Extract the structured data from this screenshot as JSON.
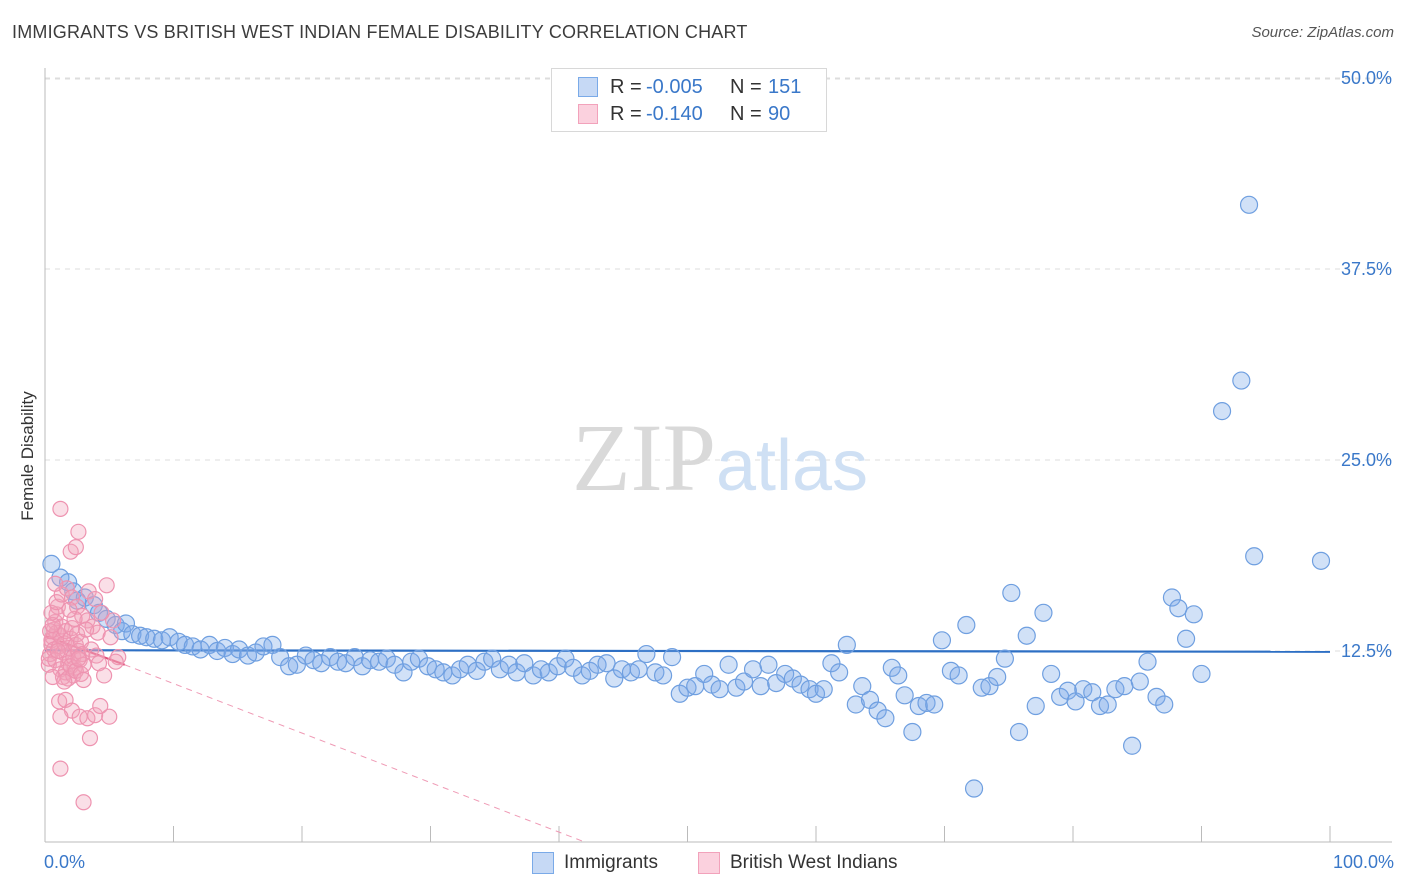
{
  "chart_data": {
    "type": "scatter",
    "title": "IMMIGRANTS VS BRITISH WEST INDIAN FEMALE DISABILITY CORRELATION CHART",
    "source": "Source: ZipAtlas.com",
    "watermark": "ZIPatlas",
    "xlabel": "",
    "ylabel": "Female Disability",
    "xlim": [
      0,
      100
    ],
    "ylim": [
      0,
      50
    ],
    "x_tick_labels": [
      "0.0%",
      "100.0%"
    ],
    "y_ticks": [
      12.5,
      25.0,
      37.5,
      50.0
    ],
    "y_tick_labels": [
      "12.5%",
      "25.0%",
      "37.5%",
      "50.0%"
    ],
    "grid": true,
    "legend_position": "top-center",
    "series": [
      {
        "name": "Immigrants",
        "color": "#7aaae8",
        "line_color": "#2d6fc4",
        "R": "-0.005",
        "N": "151",
        "trend": {
          "x": [
            0,
            100
          ],
          "y": [
            12.55,
            12.45
          ]
        },
        "points": [
          [
            0.5,
            18.2
          ],
          [
            1.2,
            17.3
          ],
          [
            1.8,
            17.0
          ],
          [
            2.2,
            16.4
          ],
          [
            2.5,
            15.8
          ],
          [
            3.1,
            16.0
          ],
          [
            3.8,
            15.5
          ],
          [
            4.2,
            15.0
          ],
          [
            4.8,
            14.6
          ],
          [
            5.5,
            14.2
          ],
          [
            6,
            13.8
          ],
          [
            6.3,
            14.3
          ],
          [
            6.8,
            13.6
          ],
          [
            7.4,
            13.5
          ],
          [
            7.9,
            13.4
          ],
          [
            8.5,
            13.3
          ],
          [
            9.1,
            13.2
          ],
          [
            9.7,
            13.4
          ],
          [
            10.4,
            13.1
          ],
          [
            10.9,
            12.9
          ],
          [
            11.5,
            12.8
          ],
          [
            12.1,
            12.6
          ],
          [
            12.8,
            12.9
          ],
          [
            13.4,
            12.5
          ],
          [
            14,
            12.7
          ],
          [
            14.6,
            12.3
          ],
          [
            15.1,
            12.6
          ],
          [
            15.8,
            12.2
          ],
          [
            16.4,
            12.4
          ],
          [
            17,
            12.8
          ],
          [
            17.7,
            12.9
          ],
          [
            18.3,
            12.1
          ],
          [
            19,
            11.5
          ],
          [
            19.6,
            11.6
          ],
          [
            20.3,
            12.2
          ],
          [
            20.9,
            11.9
          ],
          [
            21.5,
            11.7
          ],
          [
            22.2,
            12.1
          ],
          [
            22.8,
            11.8
          ],
          [
            23.4,
            11.7
          ],
          [
            24.1,
            12.1
          ],
          [
            24.7,
            11.5
          ],
          [
            25.3,
            11.9
          ],
          [
            26,
            11.8
          ],
          [
            26.6,
            12.0
          ],
          [
            27.2,
            11.6
          ],
          [
            27.9,
            11.1
          ],
          [
            28.5,
            11.8
          ],
          [
            29.1,
            12.0
          ],
          [
            29.8,
            11.5
          ],
          [
            30.4,
            11.3
          ],
          [
            31,
            11.1
          ],
          [
            31.7,
            10.9
          ],
          [
            32.3,
            11.3
          ],
          [
            32.9,
            11.6
          ],
          [
            33.6,
            11.2
          ],
          [
            34.2,
            11.8
          ],
          [
            34.8,
            12.0
          ],
          [
            35.4,
            11.3
          ],
          [
            36.1,
            11.6
          ],
          [
            36.7,
            11.1
          ],
          [
            37.3,
            11.7
          ],
          [
            38,
            10.9
          ],
          [
            38.6,
            11.3
          ],
          [
            39.2,
            11.1
          ],
          [
            39.9,
            11.5
          ],
          [
            40.5,
            12.0
          ],
          [
            41.1,
            11.4
          ],
          [
            41.8,
            10.9
          ],
          [
            42.4,
            11.2
          ],
          [
            43,
            11.6
          ],
          [
            43.7,
            11.7
          ],
          [
            44.3,
            10.7
          ],
          [
            44.9,
            11.3
          ],
          [
            45.6,
            11.1
          ],
          [
            46.2,
            11.3
          ],
          [
            46.8,
            12.3
          ],
          [
            47.5,
            11.1
          ],
          [
            48.1,
            10.9
          ],
          [
            48.8,
            12.1
          ],
          [
            49.4,
            9.7
          ],
          [
            50,
            10.1
          ],
          [
            50.6,
            10.2
          ],
          [
            51.3,
            11.0
          ],
          [
            51.9,
            10.3
          ],
          [
            52.5,
            10.0
          ],
          [
            53.2,
            11.6
          ],
          [
            53.8,
            10.1
          ],
          [
            54.4,
            10.5
          ],
          [
            55.1,
            11.3
          ],
          [
            55.7,
            10.2
          ],
          [
            56.3,
            11.6
          ],
          [
            56.9,
            10.4
          ],
          [
            57.6,
            11.0
          ],
          [
            58.2,
            10.7
          ],
          [
            58.8,
            10.3
          ],
          [
            59.5,
            10.0
          ],
          [
            60,
            9.7
          ],
          [
            60.6,
            10.0
          ],
          [
            61.2,
            11.7
          ],
          [
            61.8,
            11.1
          ],
          [
            62.4,
            12.9
          ],
          [
            63.1,
            9.0
          ],
          [
            63.6,
            10.2
          ],
          [
            64.2,
            9.3
          ],
          [
            64.8,
            8.6
          ],
          [
            65.4,
            8.1
          ],
          [
            65.9,
            11.4
          ],
          [
            66.4,
            10.9
          ],
          [
            66.9,
            9.6
          ],
          [
            67.5,
            7.2
          ],
          [
            68,
            8.9
          ],
          [
            68.6,
            9.1
          ],
          [
            69.2,
            9.0
          ],
          [
            69.8,
            13.2
          ],
          [
            70.5,
            11.2
          ],
          [
            71.1,
            10.9
          ],
          [
            71.7,
            14.2
          ],
          [
            72.3,
            3.5
          ],
          [
            72.9,
            10.1
          ],
          [
            73.5,
            10.2
          ],
          [
            74.1,
            10.8
          ],
          [
            74.7,
            12.0
          ],
          [
            75.2,
            16.3
          ],
          [
            75.8,
            7.2
          ],
          [
            76.4,
            13.5
          ],
          [
            77.1,
            8.9
          ],
          [
            77.7,
            15.0
          ],
          [
            78.3,
            11.0
          ],
          [
            79,
            9.5
          ],
          [
            79.6,
            9.9
          ],
          [
            80.2,
            9.2
          ],
          [
            80.8,
            10.0
          ],
          [
            81.5,
            9.8
          ],
          [
            82.1,
            8.9
          ],
          [
            82.7,
            9.0
          ],
          [
            83.3,
            10.0
          ],
          [
            84,
            10.2
          ],
          [
            84.6,
            6.3
          ],
          [
            85.2,
            10.5
          ],
          [
            85.8,
            11.8
          ],
          [
            86.5,
            9.5
          ],
          [
            87.1,
            9.0
          ],
          [
            87.7,
            16.0
          ],
          [
            88.2,
            15.3
          ],
          [
            88.8,
            13.3
          ],
          [
            89.4,
            14.9
          ],
          [
            90,
            11.0
          ],
          [
            91.6,
            28.2
          ],
          [
            93.1,
            30.2
          ],
          [
            93.7,
            41.7
          ],
          [
            94.1,
            18.7
          ],
          [
            99.3,
            18.4
          ]
        ]
      },
      {
        "name": "British West Indians",
        "color": "#f2a2bb",
        "line_color": "#e0507a",
        "R": "-0.140",
        "N": "90",
        "trend": {
          "x": [
            0,
            6.2
          ],
          "y": [
            13.5,
            11.6
          ]
        },
        "points": [
          [
            0.3,
            11.6
          ],
          [
            0.4,
            12.3
          ],
          [
            0.5,
            12.9
          ],
          [
            0.6,
            13.4
          ],
          [
            0.7,
            13.9
          ],
          [
            0.8,
            14.4
          ],
          [
            0.9,
            14.9
          ],
          [
            1,
            15.4
          ],
          [
            0.3,
            12.0
          ],
          [
            0.5,
            13.2
          ],
          [
            0.7,
            12.6
          ],
          [
            0.9,
            13.7
          ],
          [
            1.1,
            12.8
          ],
          [
            1.2,
            13.5
          ],
          [
            1.3,
            14.1
          ],
          [
            1.4,
            12.4
          ],
          [
            1.5,
            13.0
          ],
          [
            1.6,
            13.8
          ],
          [
            1.7,
            12.2
          ],
          [
            1.8,
            11.7
          ],
          [
            1.9,
            12.7
          ],
          [
            2,
            13.3
          ],
          [
            2.1,
            14.0
          ],
          [
            2.2,
            12.1
          ],
          [
            2.3,
            11.4
          ],
          [
            2.4,
            12.9
          ],
          [
            2.5,
            13.6
          ],
          [
            2.6,
            12.5
          ],
          [
            2.7,
            11.9
          ],
          [
            2.8,
            13.1
          ],
          [
            2.9,
            12.3
          ],
          [
            3,
            11.6
          ],
          [
            0.4,
            13.8
          ],
          [
            0.6,
            14.2
          ],
          [
            0.8,
            11.9
          ],
          [
            1,
            12.5
          ],
          [
            1.2,
            11.3
          ],
          [
            1.4,
            10.8
          ],
          [
            1.6,
            11.1
          ],
          [
            1.8,
            10.7
          ],
          [
            2,
            11.5
          ],
          [
            2.2,
            10.9
          ],
          [
            2.4,
            11.2
          ],
          [
            2.6,
            12.0
          ],
          [
            2.8,
            11.0
          ],
          [
            3,
            10.6
          ],
          [
            0.5,
            15.0
          ],
          [
            0.9,
            15.7
          ],
          [
            1.3,
            16.2
          ],
          [
            1.7,
            16.6
          ],
          [
            2.1,
            16.0
          ],
          [
            2.5,
            15.4
          ],
          [
            2.9,
            14.8
          ],
          [
            3.3,
            14.5
          ],
          [
            3.7,
            14.1
          ],
          [
            4.1,
            13.7
          ],
          [
            1.2,
            21.8
          ],
          [
            2.0,
            19.0
          ],
          [
            2.4,
            19.3
          ],
          [
            2.6,
            20.3
          ],
          [
            4.8,
            16.8
          ],
          [
            5.3,
            14.5
          ],
          [
            5.7,
            12.1
          ],
          [
            5.1,
            13.4
          ],
          [
            1.1,
            9.2
          ],
          [
            1.6,
            9.3
          ],
          [
            2.1,
            8.6
          ],
          [
            2.7,
            8.2
          ],
          [
            3.3,
            8.1
          ],
          [
            3.9,
            8.3
          ],
          [
            4.3,
            8.9
          ],
          [
            5.0,
            8.2
          ],
          [
            1.2,
            8.2
          ],
          [
            3.5,
            6.8
          ],
          [
            1.2,
            4.8
          ],
          [
            3.0,
            2.6
          ],
          [
            3.4,
            16.4
          ],
          [
            3.9,
            15.9
          ],
          [
            4.4,
            15.0
          ],
          [
            3.6,
            12.6
          ],
          [
            4.0,
            12.2
          ],
          [
            3.2,
            13.9
          ],
          [
            2.3,
            14.6
          ],
          [
            1.9,
            15.2
          ],
          [
            0.6,
            10.8
          ],
          [
            1.5,
            10.5
          ],
          [
            4.2,
            11.7
          ],
          [
            4.6,
            10.9
          ],
          [
            5.5,
            11.8
          ],
          [
            0.8,
            16.9
          ]
        ]
      }
    ],
    "trend_extension": {
      "series": "British West Indians",
      "x": [
        6.2,
        42
      ],
      "y": [
        11.6,
        0
      ]
    }
  },
  "legend_top": {
    "rows": [
      {
        "r_label": "R =",
        "r_value": "-0.005",
        "n_label": "N =",
        "n_value": "151"
      },
      {
        "r_label": "R =",
        "r_value": "-0.140",
        "n_label": "N =",
        "n_value": "90"
      }
    ]
  },
  "legend_bottom": {
    "items": [
      "Immigrants",
      "British West Indians"
    ]
  }
}
